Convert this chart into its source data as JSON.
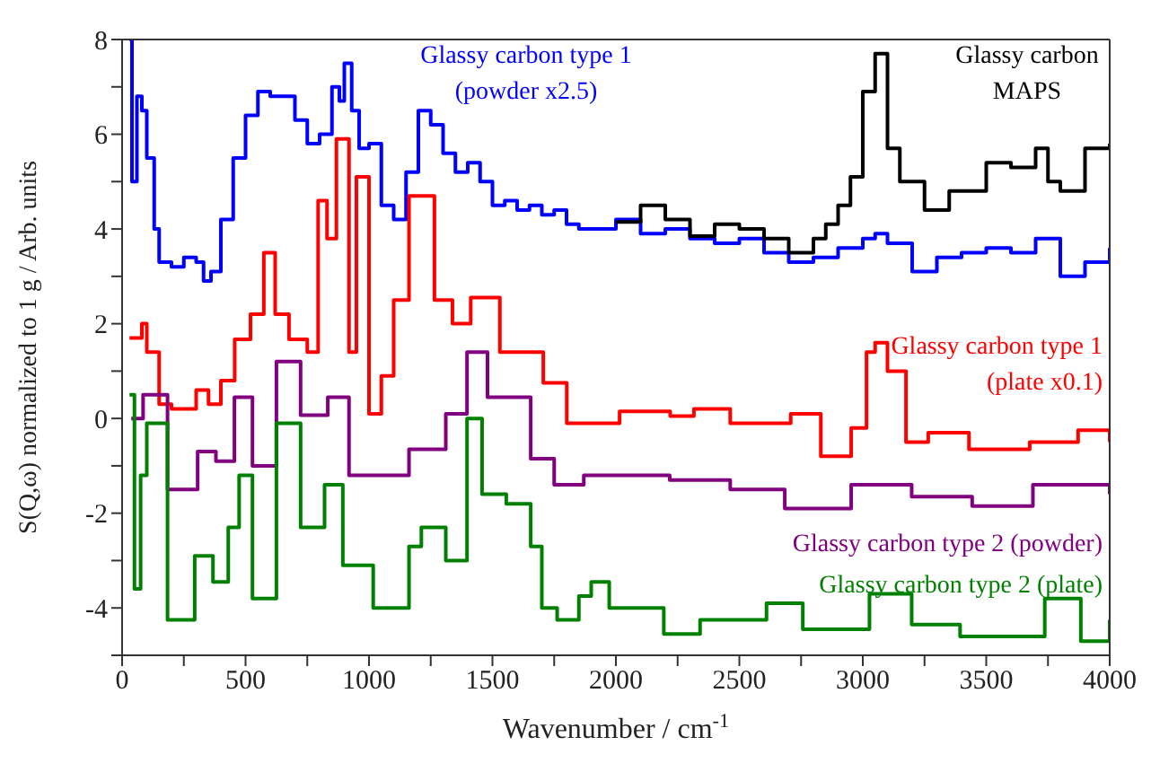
{
  "chart_data": {
    "type": "step",
    "xlabel": "Wavenumber / cm$^{-1}$",
    "ylabel": "S(Q,ω) normalized to 1 g / Arb. units",
    "xlim": [
      0,
      4000
    ],
    "ylim": [
      -5,
      8
    ],
    "xticks": [
      0,
      {
        "value": 250,
        "label": null
      },
      500,
      {
        "value": 750,
        "label": null
      },
      1000,
      {
        "value": 1250,
        "label": null
      },
      1500,
      {
        "value": 1750,
        "label": null
      },
      2000,
      {
        "value": 2250,
        "label": null
      },
      2500,
      {
        "value": 2750,
        "label": null
      },
      3000,
      {
        "value": 3250,
        "label": null
      },
      3500,
      {
        "value": 3750,
        "label": null
      },
      4000
    ],
    "yticks": [
      {
        "value": -5,
        "label": null
      },
      -4,
      {
        "value": -3,
        "label": null
      },
      -2,
      {
        "value": -1,
        "label": null
      },
      0,
      {
        "value": 1,
        "label": null
      },
      2,
      {
        "value": 3,
        "label": null
      },
      4,
      {
        "value": 5,
        "label": null
      },
      6,
      {
        "value": 7,
        "label": null
      },
      8
    ],
    "legend": false,
    "grid": false,
    "line_style": "solid",
    "marker": "none",
    "series": [
      {
        "name": "Glassy carbon type 1\n(powder x2.5)",
        "color": "#0000ff",
        "x": [
          30,
          40,
          60,
          80,
          100,
          130,
          150,
          200,
          250,
          300,
          330,
          360,
          400,
          450,
          500,
          550,
          600,
          650,
          700,
          750,
          800,
          850,
          880,
          900,
          930,
          960,
          1000,
          1050,
          1100,
          1150,
          1200,
          1250,
          1300,
          1350,
          1400,
          1450,
          1500,
          1550,
          1600,
          1650,
          1700,
          1750,
          1800,
          1850,
          2000,
          2100,
          2200,
          2300,
          2400,
          2500,
          2600,
          2700,
          2800,
          2900,
          3000,
          3050,
          3100,
          3200,
          3300,
          3400,
          3500,
          3600,
          3700,
          3800,
          3900,
          4000
        ],
        "values": [
          8,
          5,
          6.8,
          6.5,
          5.5,
          4,
          3.3,
          3.2,
          3.4,
          3.3,
          2.9,
          3.1,
          4.2,
          5.5,
          6.4,
          6.9,
          6.8,
          6.8,
          6.3,
          5.8,
          6,
          7,
          6.7,
          7.5,
          6.5,
          5.7,
          5.8,
          4.5,
          4.2,
          5.2,
          6.5,
          6.2,
          5.6,
          5.2,
          5.4,
          5,
          4.5,
          4.6,
          4.4,
          4.5,
          4.3,
          4.4,
          4.1,
          4,
          4.2,
          3.9,
          4,
          3.8,
          3.7,
          3.8,
          3.5,
          3.3,
          3.4,
          3.6,
          3.8,
          3.9,
          3.7,
          3.1,
          3.4,
          3.5,
          3.6,
          3.5,
          3.8,
          3,
          3.3,
          3.6
        ]
      },
      {
        "name": "Glassy carbon\nMAPS",
        "color": "#000000",
        "x": [
          2000,
          2100,
          2200,
          2300,
          2400,
          2500,
          2600,
          2700,
          2800,
          2850,
          2900,
          2950,
          3000,
          3050,
          3100,
          3150,
          3250,
          3350,
          3500,
          3600,
          3700,
          3750,
          3800,
          3900,
          4000
        ],
        "values": [
          4.15,
          4.5,
          4.2,
          3.85,
          4.1,
          4,
          3.8,
          3.5,
          3.8,
          4.1,
          4.5,
          5.1,
          6.9,
          7.7,
          5.7,
          5,
          4.4,
          4.8,
          5.4,
          5.3,
          5.7,
          5,
          4.8,
          5.7,
          5.8
        ]
      },
      {
        "name": "Glassy carbon type 1\n(plate x0.1)",
        "color": "#ff0000",
        "x": [
          30,
          80,
          100,
          150,
          200,
          300,
          350,
          400,
          456,
          520,
          574,
          620,
          676,
          750,
          794,
          830,
          868,
          919,
          949,
          1000,
          1050,
          1100,
          1162,
          1265,
          1338,
          1412,
          1530,
          1603,
          1706,
          1801,
          2015,
          2220,
          2316,
          2463,
          2708,
          2830,
          2953,
          3015,
          3050,
          3100,
          3175,
          3265,
          3430,
          3676,
          3872,
          4000
        ],
        "values": [
          1.7,
          2,
          1.4,
          0.3,
          0.2,
          0.6,
          0.3,
          0.8,
          1.67,
          2.2,
          3.5,
          2.2,
          1.67,
          1.4,
          4.6,
          3.8,
          5.9,
          1.4,
          5.1,
          0.1,
          0.9,
          2.5,
          4.7,
          2.5,
          2,
          2.55,
          1.4,
          1.4,
          0.75,
          -0.1,
          0.15,
          0.05,
          0.2,
          -0.1,
          0.1,
          -0.8,
          -0.2,
          1.4,
          1.6,
          1,
          -0.5,
          -0.3,
          -0.65,
          -0.5,
          -0.25,
          -0.5
        ]
      },
      {
        "name": "Glassy carbon type 2 (powder)",
        "color": "#800080",
        "x": [
          37,
          85,
          184,
          306,
          380,
          455,
          528,
          625,
          723,
          833,
          919,
          1162,
          1311,
          1397,
          1480,
          1655,
          1750,
          1870,
          1973,
          2218,
          2463,
          2684,
          2953,
          3198,
          3443,
          3689,
          4000
        ],
        "values": [
          0,
          0.5,
          -1.5,
          -0.7,
          -0.9,
          0.45,
          -1,
          1.2,
          0.07,
          0.45,
          -1.2,
          -0.65,
          0.1,
          1.4,
          0.45,
          -0.85,
          -1.4,
          -1.2,
          -1.2,
          -1.3,
          -1.5,
          -1.9,
          -1.4,
          -1.65,
          -1.85,
          -1.4,
          -1.6
        ]
      },
      {
        "name": "Glassy carbon type 2 (plate)",
        "color": "#008000",
        "x": [
          30,
          50,
          75,
          100,
          184,
          294,
          368,
          430,
          474,
          528,
          625,
          723,
          820,
          894,
          1017,
          1162,
          1212,
          1311,
          1397,
          1458,
          1556,
          1655,
          1700,
          1762,
          1850,
          1900,
          1973,
          2194,
          2341,
          2610,
          2757,
          3027,
          3198,
          3394,
          3737,
          3883,
          4000
        ],
        "values": [
          0.5,
          -3.6,
          -1.2,
          -0.1,
          -4.25,
          -2.9,
          -3.45,
          -2.3,
          -1.2,
          -3.8,
          -0.1,
          -2.3,
          -1.4,
          -3.1,
          -4,
          -2.7,
          -2.3,
          -3,
          0,
          -1.6,
          -1.8,
          -2.7,
          -4,
          -4.25,
          -3.75,
          -3.45,
          -4,
          -4.55,
          -4.25,
          -3.9,
          -4.45,
          -3.7,
          -4.35,
          -4.6,
          -3.8,
          -4.7,
          -4.25
        ]
      }
    ]
  }
}
